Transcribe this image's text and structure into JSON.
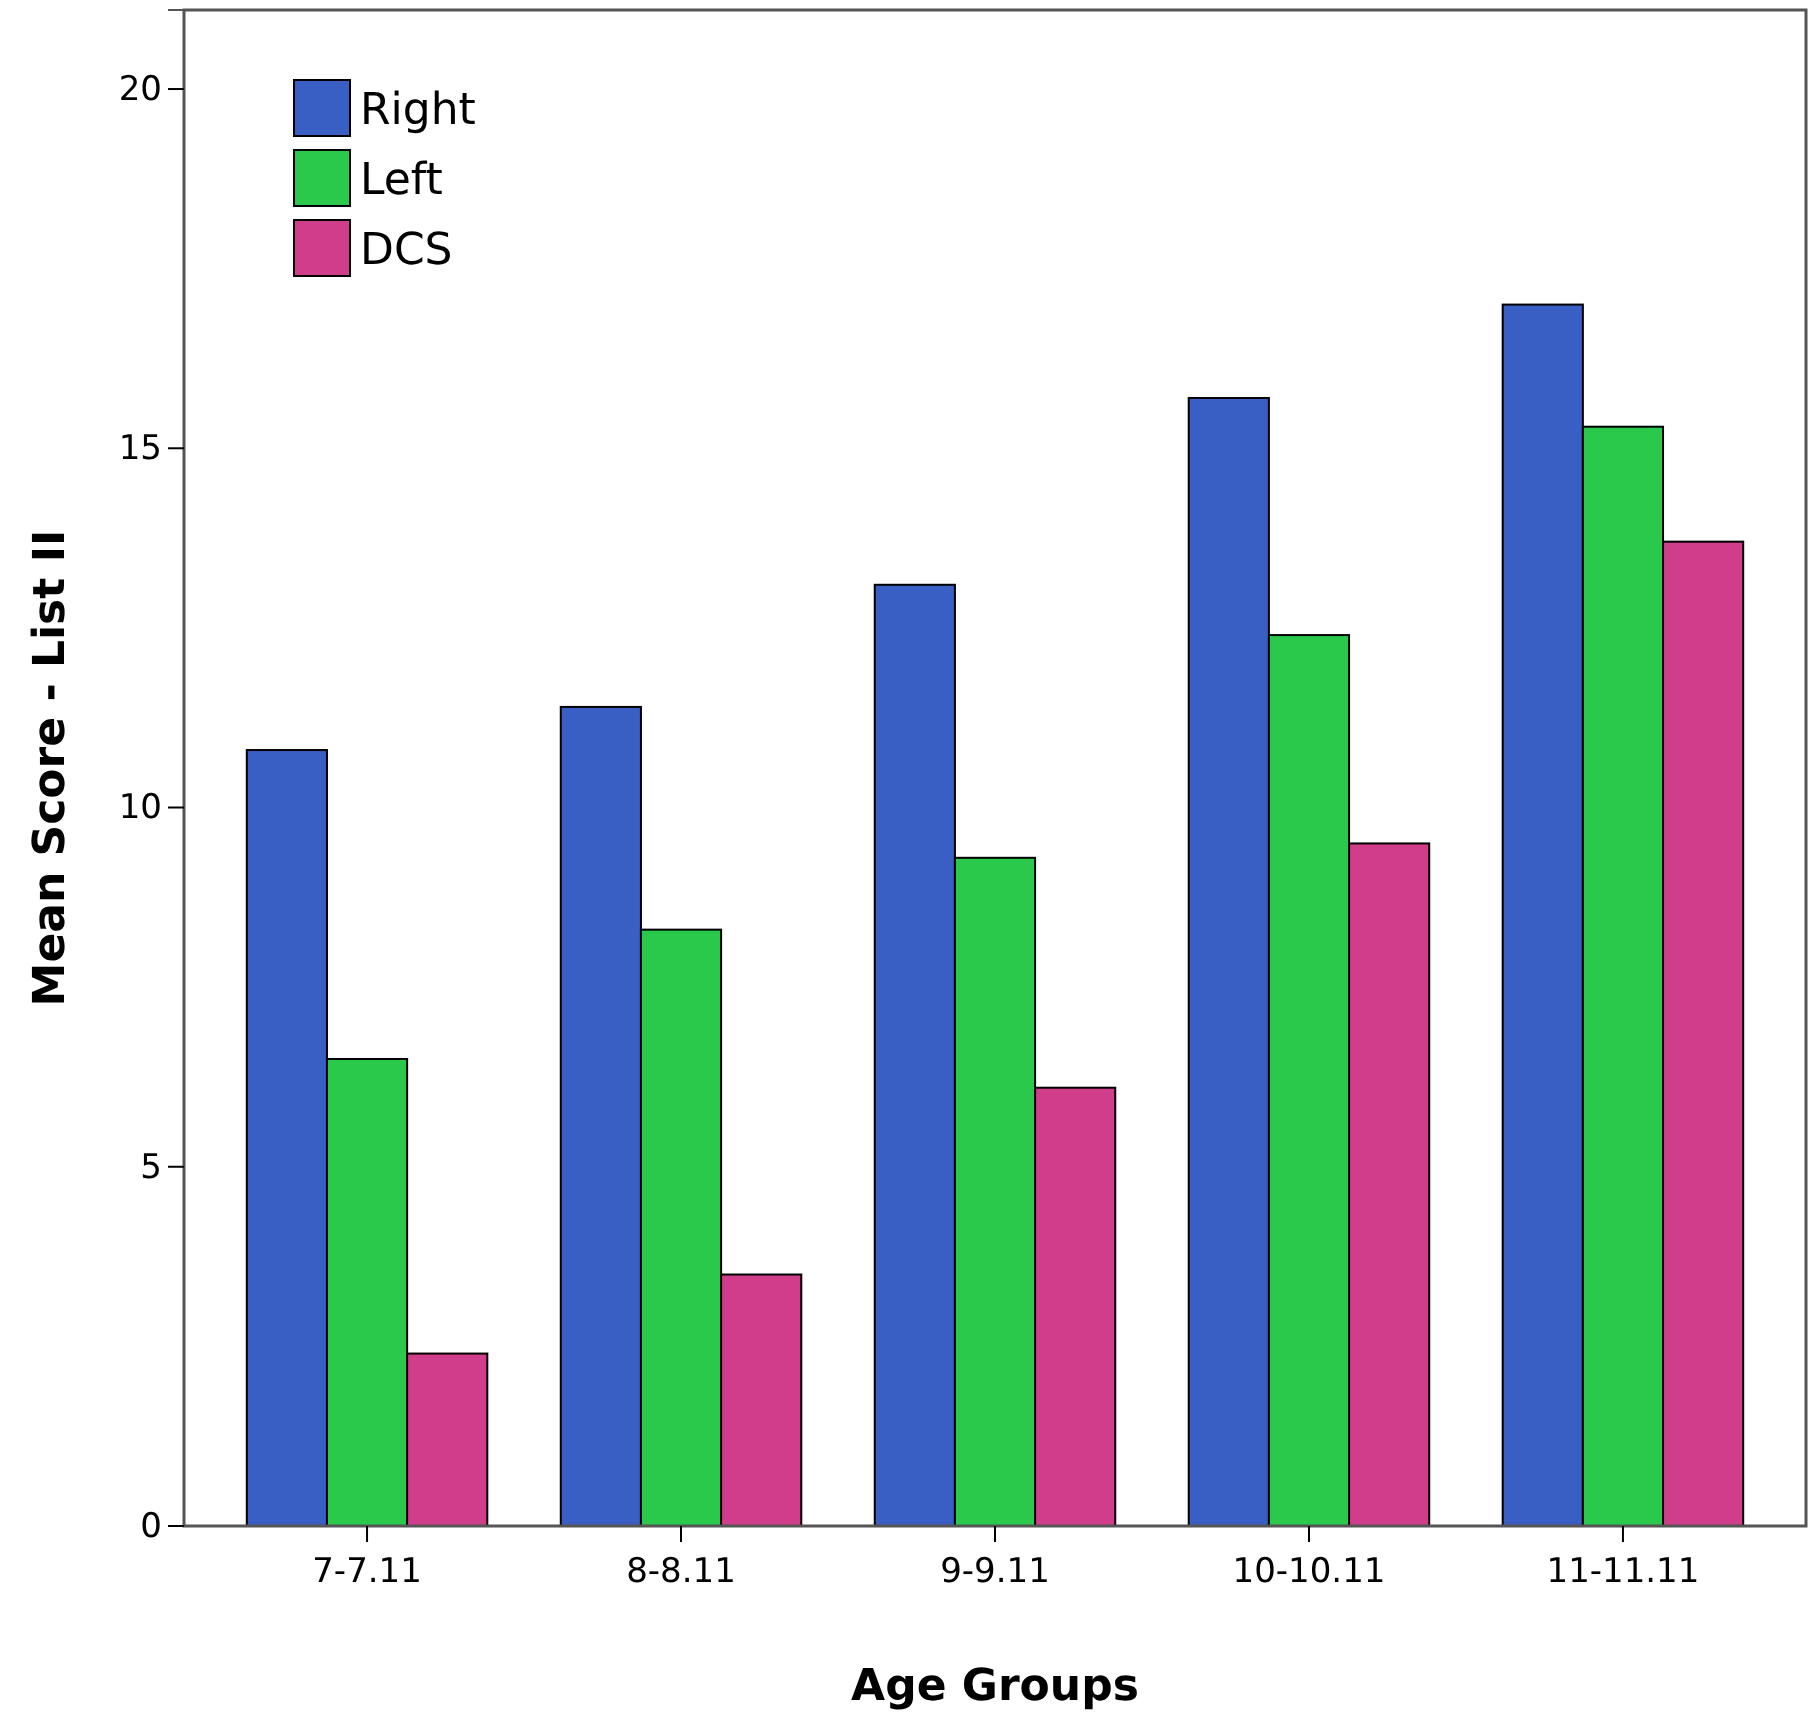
{
  "chart_data": {
    "type": "bar",
    "xlabel": "Age Groups",
    "ylabel": "Mean Score - List II",
    "categories": [
      "7-7.11",
      "8-8.11",
      "9-9.11",
      "10-10.11",
      "11-11.11"
    ],
    "series": [
      {
        "name": "Right",
        "color": "#3a5fc4",
        "values": [
          10.8,
          11.4,
          13.1,
          15.7,
          17.0
        ]
      },
      {
        "name": "Left",
        "color": "#2ac94c",
        "values": [
          6.5,
          8.3,
          9.3,
          12.4,
          15.3
        ]
      },
      {
        "name": "DCS",
        "color": "#d03d8a",
        "values": [
          2.4,
          3.5,
          6.1,
          9.5,
          13.7
        ]
      }
    ],
    "ylim": [
      0,
      21.1
    ],
    "yticks": [
      0,
      5,
      10,
      15,
      20
    ],
    "grid": false,
    "legend": "top left"
  }
}
